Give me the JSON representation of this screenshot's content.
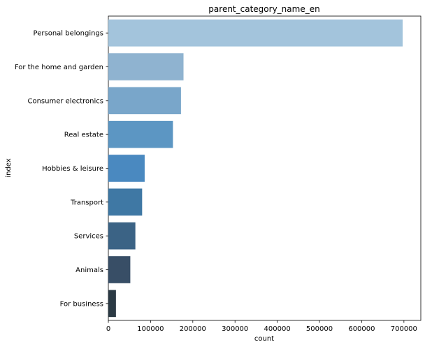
{
  "chart_data": {
    "type": "bar",
    "orientation": "horizontal",
    "title": "parent_category_name_en",
    "xlabel": "count",
    "ylabel": "index",
    "categories": [
      "Personal belongings",
      "For the home and garden",
      "Consumer electronics",
      "Real estate",
      "Hobbies & leisure",
      "Transport",
      "Services",
      "Animals",
      "For business"
    ],
    "values": [
      697000,
      178000,
      172000,
      153000,
      86000,
      80000,
      64000,
      52000,
      18000
    ],
    "colors": [
      "#a3c4dc",
      "#8fb3d0",
      "#79a6ca",
      "#5c96c3",
      "#4a89c0",
      "#3f78a4",
      "#3b6385",
      "#384e66",
      "#2b3a44"
    ],
    "xlim": [
      0,
      740000
    ],
    "xticks": [
      0,
      100000,
      200000,
      300000,
      400000,
      500000,
      600000,
      700000
    ],
    "xtick_labels": [
      "0",
      "100000",
      "200000",
      "300000",
      "400000",
      "500000",
      "600000",
      "700000"
    ],
    "grid": false,
    "legend": "none"
  }
}
